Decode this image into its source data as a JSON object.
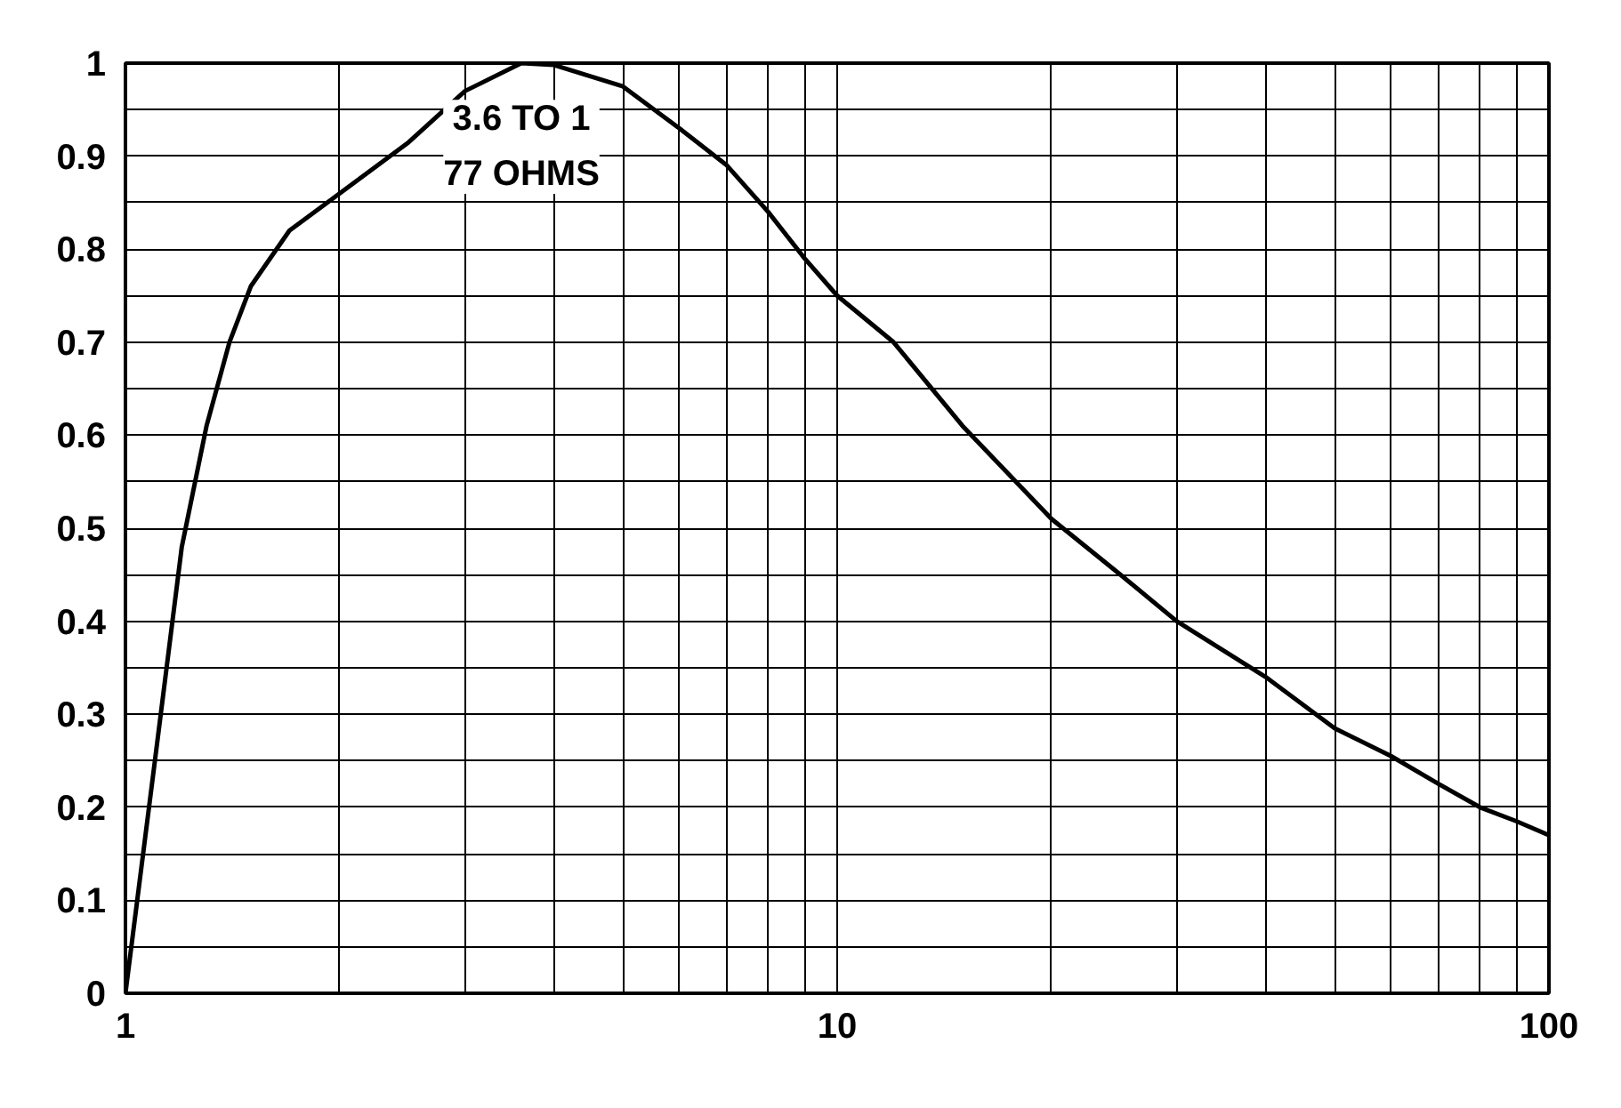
{
  "chart_data": {
    "type": "line",
    "log": "x",
    "grid": true,
    "marker": "none",
    "line_style": "solid",
    "x": [
      1,
      1.1,
      1.2,
      1.3,
      1.4,
      1.5,
      1.7,
      2,
      2.5,
      3,
      3.6,
      4,
      5,
      6,
      7,
      8,
      9,
      10,
      12,
      15,
      20,
      25,
      30,
      40,
      50,
      60,
      70,
      80,
      90,
      100
    ],
    "series": [
      {
        "color": "#000000",
        "values": [
          0,
          0.25,
          0.48,
          0.61,
          0.7,
          0.76,
          0.82,
          0.86,
          0.915,
          0.97,
          1.0,
          0.998,
          0.975,
          0.93,
          0.89,
          0.84,
          0.79,
          0.75,
          0.7,
          0.61,
          0.51,
          0.45,
          0.4,
          0.34,
          0.285,
          0.255,
          0.225,
          0.2,
          0.185,
          0.17
        ]
      }
    ],
    "xlim": [
      1,
      100
    ],
    "ylim": [
      0,
      1
    ],
    "xticks": [
      1,
      {
        "value": 2,
        "label": null
      },
      {
        "value": 3,
        "label": null
      },
      {
        "value": 4,
        "label": null
      },
      {
        "value": 5,
        "label": null
      },
      {
        "value": 6,
        "label": null
      },
      {
        "value": 7,
        "label": null
      },
      {
        "value": 8,
        "label": null
      },
      {
        "value": 9,
        "label": null
      },
      10,
      {
        "value": 20,
        "label": null
      },
      {
        "value": 30,
        "label": null
      },
      {
        "value": 40,
        "label": null
      },
      {
        "value": 50,
        "label": null
      },
      {
        "value": 60,
        "label": null
      },
      {
        "value": 70,
        "label": null
      },
      {
        "value": 80,
        "label": null
      },
      {
        "value": 90,
        "label": null
      },
      100
    ],
    "yticks": [
      0,
      {
        "value": 0.05,
        "label": null
      },
      0.1,
      {
        "value": 0.15,
        "label": null
      },
      0.2,
      {
        "value": 0.25,
        "label": null
      },
      0.3,
      {
        "value": 0.35,
        "label": null
      },
      0.4,
      {
        "value": 0.45,
        "label": null
      },
      0.5,
      {
        "value": 0.55,
        "label": null
      },
      0.6,
      {
        "value": 0.65,
        "label": null
      },
      0.7,
      {
        "value": 0.75,
        "label": null
      },
      0.8,
      {
        "value": 0.85,
        "label": null
      },
      0.9,
      {
        "value": 0.95,
        "label": null
      },
      1
    ],
    "annotations": [
      "3.6 TO 1\n77 OHMS"
    ]
  }
}
